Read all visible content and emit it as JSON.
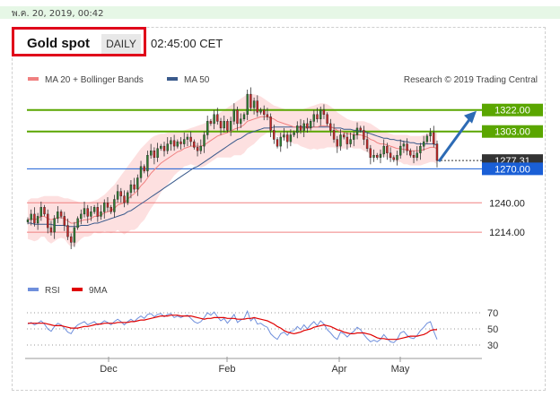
{
  "header": {
    "datetime": "พ.ค. 20, 2019, 00:42",
    "instrument": "Gold spot",
    "period": "DAILY",
    "time": "02:45:00 CET"
  },
  "colors": {
    "ma20": "#f08080",
    "ma50": "#3a5a8c",
    "band": "#fde0e0",
    "green_level": "#5aa600",
    "blue_level": "#1a5fd6",
    "red_level": "#f08080",
    "candle_up": "#2e7d32",
    "candle_down": "#c62828",
    "rsi": "#6f8fdc",
    "rsi_ma": "#e00000",
    "arrow": "#2d6bb5"
  },
  "chart_data": [
    {
      "type": "line",
      "legend": [
        {
          "name": "MA 20 + Bollinger Bands",
          "color": "#f08080"
        },
        {
          "name": "MA 50",
          "color": "#3a5a8c"
        }
      ],
      "credit": "Research © 2019 Trading Central",
      "x_tick_labels": [
        "Dec",
        "Feb",
        "Apr",
        "May"
      ],
      "ylim": [
        1180,
        1340
      ],
      "levels": [
        {
          "value": 1322.0,
          "label": "1322.00",
          "style": "green-box"
        },
        {
          "value": 1303.0,
          "label": "1303.00",
          "style": "green-box"
        },
        {
          "value": 1277.31,
          "label": "1277.31",
          "style": "dark-box"
        },
        {
          "value": 1270.0,
          "label": "1270.00",
          "style": "blue-box"
        },
        {
          "value": 1240.0,
          "label": "1240.00",
          "style": "red-text"
        },
        {
          "value": 1214.0,
          "label": "1214.00",
          "style": "red-text"
        }
      ],
      "close": [
        1225,
        1230,
        1222,
        1228,
        1236,
        1230,
        1218,
        1214,
        1226,
        1232,
        1228,
        1220,
        1210,
        1205,
        1218,
        1226,
        1230,
        1235,
        1228,
        1232,
        1236,
        1228,
        1232,
        1240,
        1236,
        1232,
        1243,
        1250,
        1246,
        1240,
        1249,
        1256,
        1252,
        1262,
        1272,
        1268,
        1282,
        1286,
        1280,
        1288,
        1290,
        1286,
        1292,
        1295,
        1290,
        1294,
        1292,
        1296,
        1298,
        1294,
        1289,
        1286,
        1290,
        1300,
        1312,
        1310,
        1318,
        1312,
        1306,
        1312,
        1304,
        1312,
        1322,
        1310,
        1314,
        1318,
        1336,
        1324,
        1330,
        1320,
        1322,
        1318,
        1316,
        1304,
        1296,
        1290,
        1298,
        1300,
        1294,
        1300,
        1302,
        1308,
        1304,
        1310,
        1306,
        1312,
        1318,
        1314,
        1322,
        1318,
        1310,
        1304,
        1296,
        1290,
        1300,
        1298,
        1292,
        1296,
        1300,
        1306,
        1304,
        1296,
        1288,
        1280,
        1282,
        1280,
        1283,
        1290,
        1284,
        1280,
        1278,
        1282,
        1290,
        1292,
        1286,
        1282,
        1280,
        1284,
        1290,
        1294,
        1299,
        1302,
        1292,
        1277.31
      ],
      "ma20": [
        1225,
        1226,
        1225,
        1226,
        1228,
        1228,
        1226,
        1225,
        1226,
        1227,
        1227,
        1226,
        1224,
        1222,
        1222,
        1223,
        1224,
        1225,
        1225,
        1226,
        1228,
        1228,
        1229,
        1231,
        1232,
        1233,
        1235,
        1238,
        1239,
        1240,
        1243,
        1246,
        1248,
        1251,
        1255,
        1258,
        1262,
        1266,
        1269,
        1272,
        1275,
        1277,
        1279,
        1281,
        1283,
        1285,
        1286,
        1288,
        1289,
        1290,
        1290,
        1290,
        1290,
        1291,
        1293,
        1295,
        1297,
        1299,
        1300,
        1301,
        1302,
        1303,
        1305,
        1306,
        1307,
        1309,
        1312,
        1313,
        1314,
        1315,
        1316,
        1316,
        1316,
        1315,
        1314,
        1312,
        1311,
        1310,
        1309,
        1308,
        1307,
        1307,
        1306,
        1306,
        1306,
        1306,
        1307,
        1307,
        1308,
        1308,
        1308,
        1307,
        1306,
        1304,
        1303,
        1302,
        1301,
        1301,
        1300,
        1300,
        1300,
        1299,
        1298,
        1296,
        1295,
        1293,
        1292,
        1292,
        1291,
        1290,
        1289,
        1288,
        1288,
        1287,
        1287,
        1286,
        1286,
        1286,
        1286,
        1287,
        1288,
        1289,
        1289,
        1288
      ],
      "upper_band": [
        1242,
        1244,
        1244,
        1244,
        1245,
        1246,
        1246,
        1246,
        1246,
        1246,
        1245,
        1244,
        1244,
        1243,
        1242,
        1241,
        1240,
        1240,
        1240,
        1241,
        1242,
        1243,
        1245,
        1247,
        1250,
        1253,
        1256,
        1260,
        1264,
        1268,
        1272,
        1276,
        1280,
        1284,
        1288,
        1291,
        1294,
        1297,
        1299,
        1300,
        1301,
        1301,
        1302,
        1302,
        1302,
        1303,
        1303,
        1304,
        1305,
        1306,
        1307,
        1308,
        1309,
        1310,
        1312,
        1314,
        1316,
        1318,
        1320,
        1322,
        1324,
        1326,
        1328,
        1330,
        1332,
        1334,
        1336,
        1336,
        1336,
        1335,
        1334,
        1332,
        1330,
        1328,
        1326,
        1325,
        1324,
        1323,
        1322,
        1322,
        1322,
        1322,
        1322,
        1323,
        1324,
        1325,
        1326,
        1327,
        1328,
        1328,
        1327,
        1325,
        1323,
        1320,
        1318,
        1316,
        1314,
        1313,
        1312,
        1312,
        1312,
        1312,
        1311,
        1310,
        1308,
        1306,
        1304,
        1303,
        1302,
        1301,
        1300,
        1300,
        1300,
        1300,
        1300,
        1299,
        1299,
        1299,
        1299,
        1300,
        1301,
        1302,
        1302,
        1302
      ],
      "lower_band": [
        1208,
        1207,
        1206,
        1207,
        1210,
        1210,
        1206,
        1204,
        1206,
        1208,
        1209,
        1208,
        1204,
        1201,
        1202,
        1205,
        1208,
        1210,
        1210,
        1211,
        1214,
        1213,
        1213,
        1215,
        1214,
        1213,
        1214,
        1216,
        1214,
        1212,
        1214,
        1216,
        1216,
        1218,
        1222,
        1225,
        1230,
        1235,
        1239,
        1244,
        1249,
        1253,
        1256,
        1260,
        1264,
        1267,
        1269,
        1272,
        1273,
        1274,
        1273,
        1272,
        1271,
        1272,
        1274,
        1276,
        1278,
        1280,
        1280,
        1280,
        1280,
        1280,
        1282,
        1282,
        1282,
        1284,
        1288,
        1290,
        1292,
        1295,
        1298,
        1300,
        1302,
        1302,
        1302,
        1299,
        1298,
        1297,
        1296,
        1294,
        1292,
        1292,
        1290,
        1289,
        1288,
        1287,
        1288,
        1287,
        1288,
        1288,
        1289,
        1289,
        1289,
        1288,
        1288,
        1288,
        1288,
        1289,
        1288,
        1288,
        1288,
        1286,
        1285,
        1282,
        1282,
        1280,
        1280,
        1281,
        1280,
        1279,
        1278,
        1276,
        1276,
        1274,
        1274,
        1273,
        1273,
        1273,
        1273,
        1274,
        1275,
        1276,
        1276,
        1274
      ],
      "ma50": [
        1222,
        1222,
        1221,
        1221,
        1221,
        1221,
        1221,
        1221,
        1220,
        1220,
        1220,
        1220,
        1219,
        1219,
        1219,
        1219,
        1220,
        1220,
        1220,
        1221,
        1222,
        1222,
        1223,
        1224,
        1225,
        1226,
        1227,
        1228,
        1229,
        1230,
        1232,
        1233,
        1235,
        1237,
        1239,
        1241,
        1243,
        1245,
        1247,
        1249,
        1251,
        1253,
        1255,
        1257,
        1259,
        1261,
        1263,
        1265,
        1267,
        1269,
        1271,
        1272,
        1274,
        1276,
        1278,
        1280,
        1282,
        1284,
        1286,
        1288,
        1290,
        1292,
        1294,
        1296,
        1297,
        1299,
        1301,
        1302,
        1303,
        1304,
        1305,
        1306,
        1306,
        1306,
        1307,
        1307,
        1307,
        1307,
        1307,
        1307,
        1307,
        1307,
        1307,
        1307,
        1307,
        1307,
        1307,
        1307,
        1307,
        1307,
        1307,
        1307,
        1306,
        1306,
        1306,
        1305,
        1305,
        1305,
        1304,
        1304,
        1303,
        1303,
        1302,
        1301,
        1300,
        1299,
        1298,
        1297,
        1297,
        1296,
        1296,
        1295,
        1295,
        1294,
        1294,
        1293,
        1293,
        1292,
        1292,
        1292,
        1292,
        1292,
        1292,
        1291
      ]
    },
    {
      "type": "line",
      "legend": [
        {
          "name": "RSI",
          "color": "#6f8fdc"
        },
        {
          "name": "9MA",
          "color": "#e00000"
        }
      ],
      "ylim": [
        20,
        80
      ],
      "y_ticks": [
        70,
        50,
        30
      ],
      "rsi": [
        56,
        58,
        55,
        57,
        60,
        56,
        50,
        47,
        53,
        57,
        55,
        51,
        46,
        44,
        51,
        55,
        57,
        59,
        55,
        57,
        59,
        55,
        57,
        60,
        58,
        55,
        59,
        62,
        59,
        55,
        59,
        62,
        59,
        63,
        66,
        63,
        68,
        69,
        65,
        68,
        69,
        65,
        68,
        69,
        64,
        66,
        64,
        66,
        67,
        63,
        59,
        57,
        59,
        64,
        70,
        67,
        71,
        65,
        60,
        63,
        57,
        62,
        68,
        58,
        61,
        63,
        72,
        60,
        64,
        56,
        57,
        54,
        52,
        44,
        40,
        37,
        44,
        46,
        42,
        47,
        48,
        53,
        49,
        55,
        50,
        55,
        59,
        54,
        60,
        56,
        49,
        45,
        40,
        37,
        46,
        44,
        40,
        44,
        47,
        52,
        49,
        43,
        38,
        34,
        36,
        34,
        37,
        43,
        38,
        34,
        33,
        37,
        45,
        47,
        42,
        39,
        38,
        42,
        48,
        52,
        57,
        59,
        47,
        37
      ],
      "rsi_9ma": [
        57,
        57,
        57,
        57,
        57,
        57,
        56,
        55,
        54,
        54,
        54,
        53,
        52,
        51,
        51,
        51,
        52,
        53,
        53,
        54,
        55,
        56,
        56,
        57,
        57,
        57,
        57,
        58,
        58,
        58,
        58,
        59,
        59,
        60,
        61,
        61,
        62,
        63,
        64,
        65,
        66,
        66,
        66,
        67,
        67,
        67,
        66,
        66,
        66,
        66,
        65,
        64,
        63,
        62,
        63,
        63,
        64,
        64,
        64,
        64,
        63,
        63,
        63,
        62,
        62,
        62,
        63,
        63,
        64,
        63,
        62,
        61,
        60,
        58,
        56,
        53,
        51,
        48,
        46,
        45,
        44,
        45,
        46,
        48,
        49,
        50,
        52,
        53,
        54,
        55,
        54,
        53,
        51,
        49,
        48,
        46,
        45,
        44,
        44,
        45,
        45,
        45,
        44,
        43,
        41,
        39,
        38,
        38,
        37,
        37,
        37,
        37,
        38,
        39,
        40,
        41,
        41,
        41,
        42,
        43,
        45,
        48,
        49,
        49
      ]
    }
  ]
}
